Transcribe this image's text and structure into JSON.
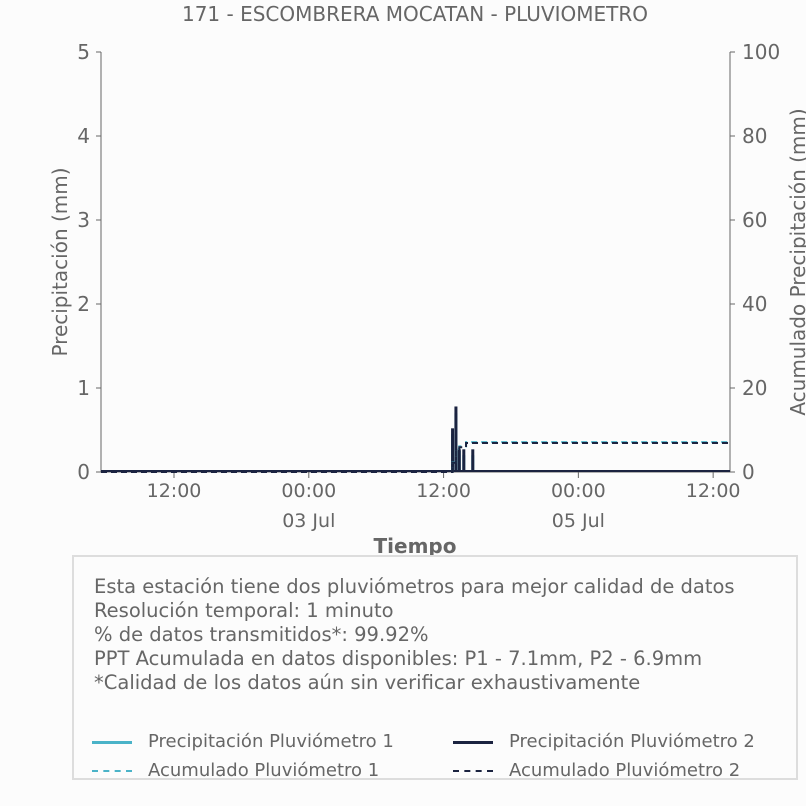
{
  "chart_data": {
    "type": "bar",
    "title": "171 - ESCOMBRERA MOCATAN - PLUVIOMETRO",
    "xlabel": "Tiempo",
    "ylabel": "Precipitación (mm)",
    "y2label": "Acumulado Precipitación (mm)",
    "ylim": [
      0,
      5
    ],
    "y2lim": [
      0,
      100
    ],
    "yticks": [
      "0",
      "1",
      "2",
      "3",
      "4",
      "5"
    ],
    "y2ticks": [
      "0",
      "20",
      "40",
      "60",
      "80",
      "100"
    ],
    "xticks": [
      {
        "label": "12:00",
        "sub": "",
        "hour": 12
      },
      {
        "label": "00:00",
        "sub": "03 Jul",
        "hour": 24
      },
      {
        "label": "12:00",
        "sub": "",
        "hour": 36
      },
      {
        "label": "00:00",
        "sub": "05 Jul",
        "hour": 48
      },
      {
        "label": "12:00",
        "sub": "",
        "hour": 60
      }
    ],
    "xlim_hours": [
      5.5,
      61.5
    ],
    "series": [
      {
        "name": "Precipitación Pluviómetro 1",
        "kind": "bar",
        "axis": "left",
        "color": "#4ab3c8",
        "points": [
          [
            36.8,
            0.45
          ],
          [
            37.1,
            0.7
          ],
          [
            37.4,
            0.25
          ],
          [
            37.8,
            0.2
          ],
          [
            38.6,
            0.2
          ]
        ]
      },
      {
        "name": "Precipitación Pluviómetro 2",
        "kind": "bar",
        "axis": "left",
        "color": "#1b2340",
        "points": [
          [
            36.8,
            0.52
          ],
          [
            37.1,
            0.78
          ],
          [
            37.4,
            0.27
          ],
          [
            37.8,
            0.27
          ],
          [
            38.6,
            0.27
          ]
        ]
      },
      {
        "name": "Acumulado Pluviómetro 1",
        "kind": "step",
        "axis": "right",
        "color": "#4ab3c8",
        "points": [
          [
            5.5,
            0
          ],
          [
            36.7,
            0
          ],
          [
            36.8,
            2.3
          ],
          [
            37.1,
            5.5
          ],
          [
            37.4,
            6.1
          ],
          [
            38.0,
            7.1
          ],
          [
            61.5,
            7.1
          ]
        ]
      },
      {
        "name": "Acumulado Pluviómetro 2",
        "kind": "step",
        "axis": "right",
        "color": "#1b2340",
        "points": [
          [
            5.5,
            0
          ],
          [
            36.7,
            0
          ],
          [
            36.8,
            2.2
          ],
          [
            37.1,
            5.3
          ],
          [
            37.4,
            5.9
          ],
          [
            38.0,
            6.9
          ],
          [
            61.5,
            6.9
          ]
        ]
      }
    ],
    "legend_placement": "bottom"
  },
  "info": {
    "lines": [
      "Esta estación tiene dos pluviómetros para mejor calidad de datos",
      "Resolución temporal: 1 minuto",
      "% de datos transmitidos*: 99.92%",
      "PPT Acumulada en datos disponibles: P1 - 7.1mm, P2 - 6.9mm",
      "*Calidad de los datos aún sin verificar exhaustivamente"
    ]
  },
  "legend": {
    "p1": "Precipitación Pluviómetro 1",
    "p2": "Precipitación Pluviómetro 2",
    "a1": "Acumulado Pluviómetro 1",
    "a2": "Acumulado Pluviómetro 2"
  }
}
